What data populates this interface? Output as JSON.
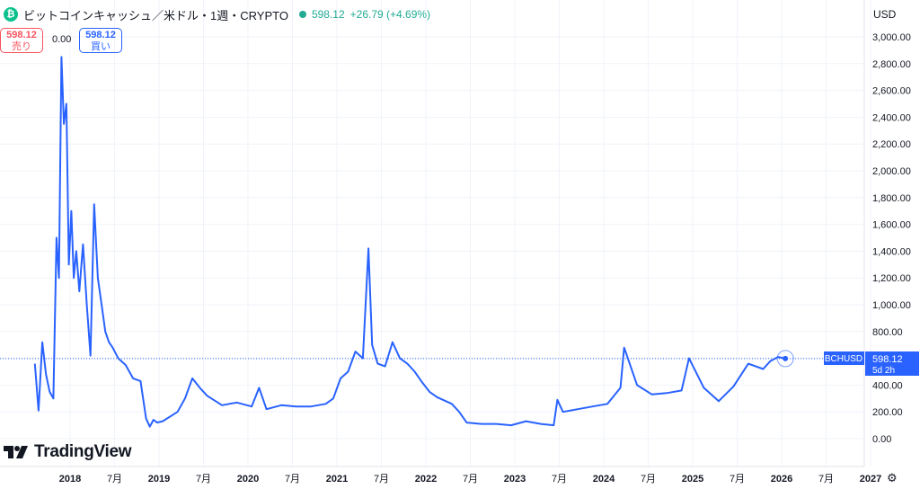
{
  "header": {
    "symbol_title": "ビットコインキャッシュ／米ドル・1週・CRYPTO",
    "price": "598.12",
    "change": "+26.79 (+4.69%)",
    "coin_icon": "bitcoin-cash-icon",
    "status_color": "#22ab94"
  },
  "quote": {
    "sell_price": "598.12",
    "sell_label": "売り",
    "spread": "0.00",
    "buy_price": "598.12",
    "buy_label": "買い"
  },
  "axis": {
    "currency": "USD",
    "y_ticks": [
      "3,000.00",
      "2,800.00",
      "2,600.00",
      "2,400.00",
      "2,200.00",
      "2,000.00",
      "1,800.00",
      "1,600.00",
      "1,400.00",
      "1,200.00",
      "1,000.00",
      "800.00",
      "600.00",
      "400.00",
      "200.00",
      "0.00"
    ],
    "x_ticks": [
      "2018",
      "7月",
      "2019",
      "7月",
      "2020",
      "7月",
      "2021",
      "7月",
      "2022",
      "7月",
      "2023",
      "7月",
      "2024",
      "7月",
      "2025",
      "7月",
      "2026",
      "7月",
      "2027"
    ]
  },
  "price_tag": {
    "symbol": "BCHUSD",
    "price": "598.12",
    "countdown": "5d 2h"
  },
  "brand": {
    "name": "TradingView"
  },
  "settings_icon": "settings-icon",
  "colors": {
    "line": "#2962ff",
    "grid": "#f0f3fa",
    "sell": "#f7525f",
    "buy": "#2962ff"
  },
  "chart_data": {
    "type": "line",
    "ylim": [
      0,
      3000
    ],
    "x_start": "2017-08",
    "series": [
      {
        "x": [
          "2017-08",
          "2017-08",
          "2017-09",
          "2017-09",
          "2017-10",
          "2017-10",
          "2017-11",
          "2017-11",
          "2017-11",
          "2017-12",
          "2017-12",
          "2017-12",
          "2018-01",
          "2018-01",
          "2018-01",
          "2018-02",
          "2018-02",
          "2018-03",
          "2018-03",
          "2018-04",
          "2018-04",
          "2018-05",
          "2018-05",
          "2018-06",
          "2018-06",
          "2018-07",
          "2018-08",
          "2018-09",
          "2018-10",
          "2018-11",
          "2018-11",
          "2018-12",
          "2018-12",
          "2019-01",
          "2019-03",
          "2019-04",
          "2019-05",
          "2019-06",
          "2019-07",
          "2019-09",
          "2019-11",
          "2020-01",
          "2020-02",
          "2020-03",
          "2020-05",
          "2020-07",
          "2020-09",
          "2020-11",
          "2020-12",
          "2021-01",
          "2021-02",
          "2021-03",
          "2021-04",
          "2021-05",
          "2021-05",
          "2021-06",
          "2021-07",
          "2021-08",
          "2021-09",
          "2021-10",
          "2021-11",
          "2021-12",
          "2022-01",
          "2022-02",
          "2022-04",
          "2022-05",
          "2022-06",
          "2022-08",
          "2022-10",
          "2022-12",
          "2023-02",
          "2023-04",
          "2023-06",
          "2023-06",
          "2023-07",
          "2023-09",
          "2023-11",
          "2024-01",
          "2024-03",
          "2024-03",
          "2024-05",
          "2024-07",
          "2024-09",
          "2024-11",
          "2024-12",
          "2025-02",
          "2025-04",
          "2025-06",
          "2025-08",
          "2025-10",
          "2025-11",
          "2025-12",
          "2026-01"
        ],
        "y": [
          560,
          210,
          720,
          480,
          350,
          300,
          1500,
          1200,
          2850,
          2350,
          2500,
          1300,
          1700,
          1200,
          1400,
          1100,
          1450,
          1000,
          620,
          1750,
          1200,
          1000,
          800,
          720,
          680,
          600,
          550,
          450,
          430,
          150,
          90,
          140,
          120,
          130,
          200,
          300,
          450,
          380,
          320,
          250,
          270,
          240,
          380,
          220,
          250,
          240,
          240,
          260,
          300,
          450,
          500,
          650,
          600,
          1420,
          700,
          560,
          540,
          720,
          600,
          560,
          500,
          420,
          350,
          310,
          260,
          200,
          120,
          110,
          110,
          100,
          130,
          110,
          100,
          290,
          200,
          220,
          240,
          260,
          380,
          680,
          400,
          330,
          340,
          360,
          600,
          380,
          280,
          390,
          560,
          520,
          580,
          610,
          598.12
        ]
      }
    ]
  }
}
